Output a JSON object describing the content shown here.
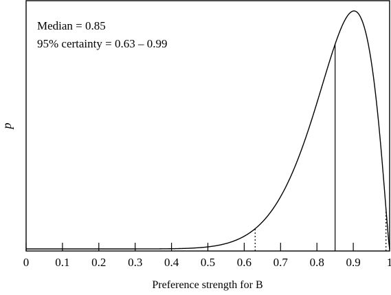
{
  "chart_data": {
    "type": "line",
    "title": "",
    "xlabel": "Preference strength for B",
    "ylabel": "p",
    "xlim": [
      0,
      1
    ],
    "ylim": [
      0,
      1
    ],
    "x_ticks": [
      "0",
      "0.1",
      "0.2",
      "0.3",
      "0.4",
      "0.5",
      "0.6",
      "0.7",
      "0.8",
      "0.9",
      "1"
    ],
    "annotations": [
      "Median = 0.85",
      "95% certainty = 0.63 – 0.99"
    ],
    "series": [
      {
        "distribution": "beta",
        "alpha": 12.5,
        "beta": 2.25,
        "mode": 0.9
      }
    ],
    "markers": [
      {
        "x": 0.85,
        "label": "median",
        "style": "solid"
      },
      {
        "x": 0.63,
        "label": "lower 95% bound",
        "style": "dotted"
      },
      {
        "x": 0.99,
        "label": "upper 95% bound",
        "style": "dotted"
      }
    ],
    "grid": false,
    "legend": "none"
  }
}
